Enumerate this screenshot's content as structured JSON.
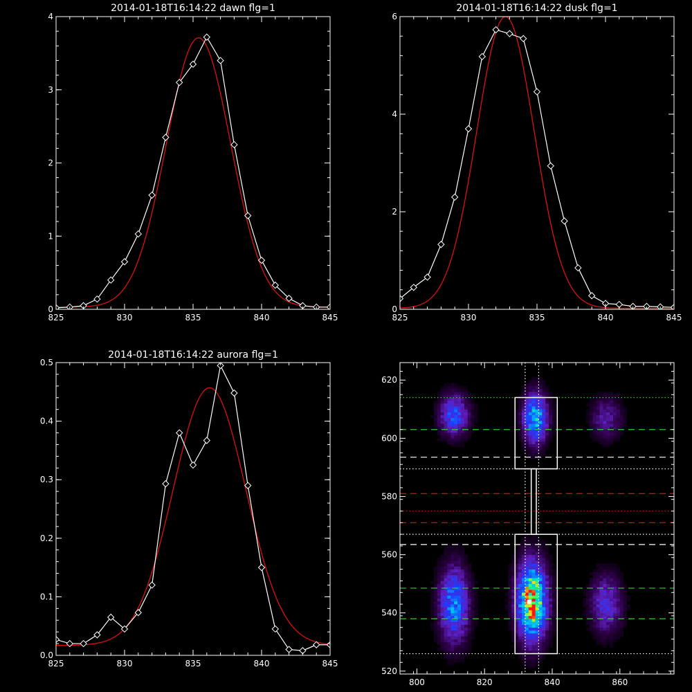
{
  "colors": {
    "background": "#000000",
    "axis": "#ffffff",
    "data": "#ffffff",
    "fit": "#dd1111",
    "green": "#33cc33",
    "dashed_white": "#ffffff",
    "red": "#dd1111"
  },
  "chart_data": [
    {
      "type": "line",
      "title": "2014-01-18T16:14:22 dawn flg=1",
      "xlim": [
        825,
        845
      ],
      "ylim": [
        0,
        4
      ],
      "xticks": [
        "825",
        "830",
        "835",
        "840",
        "845"
      ],
      "yticks": [
        "0",
        "1",
        "2",
        "3",
        "4"
      ],
      "series": [
        {
          "style": "data",
          "marker": "diamond",
          "x": [
            825,
            826,
            827,
            828,
            829,
            830,
            831,
            832,
            833,
            834,
            835,
            836,
            837,
            838,
            839,
            840,
            841,
            842,
            843,
            844,
            845
          ],
          "y": [
            0.02,
            0.03,
            0.05,
            0.14,
            0.4,
            0.65,
            1.03,
            1.56,
            2.35,
            3.1,
            3.35,
            3.72,
            3.4,
            2.25,
            1.28,
            0.67,
            0.33,
            0.15,
            0.05,
            0.03,
            0.03
          ]
        },
        {
          "style": "fit",
          "peak": 3.68,
          "center": 835.4,
          "sigma": 2.35,
          "base": 0.03
        }
      ]
    },
    {
      "type": "line",
      "title": "2014-01-18T16:14:22 dusk flg=1",
      "xlim": [
        825,
        845
      ],
      "ylim": [
        0,
        6
      ],
      "xticks": [
        "825",
        "830",
        "835",
        "840",
        "845"
      ],
      "yticks": [
        "0",
        "2",
        "4",
        "6"
      ],
      "series": [
        {
          "style": "data",
          "marker": "diamond",
          "x": [
            825,
            826,
            827,
            828,
            829,
            830,
            831,
            832,
            833,
            834,
            835,
            836,
            837,
            838,
            839,
            840,
            841,
            842,
            843,
            844,
            845
          ],
          "y": [
            0.22,
            0.45,
            0.66,
            1.33,
            2.3,
            3.7,
            5.18,
            5.73,
            5.65,
            5.55,
            4.46,
            2.94,
            1.81,
            0.85,
            0.28,
            0.12,
            0.1,
            0.06,
            0.06,
            0.05,
            0.04
          ]
        },
        {
          "style": "fit",
          "peak": 5.98,
          "center": 832.7,
          "sigma": 2.1,
          "base": 0.02
        }
      ]
    },
    {
      "type": "line",
      "title": "2014-01-18T16:14:22 aurora flg=1",
      "xlim": [
        825,
        845
      ],
      "ylim": [
        0,
        0.5
      ],
      "xticks": [
        "825",
        "830",
        "835",
        "840",
        "845"
      ],
      "yticks": [
        "0.0",
        "0.1",
        "0.2",
        "0.3",
        "0.4",
        "0.5"
      ],
      "series": [
        {
          "style": "data",
          "marker": "diamond",
          "x": [
            825,
            826,
            827,
            828,
            829,
            830,
            831,
            832,
            833,
            834,
            835,
            836,
            837,
            838,
            839,
            840,
            841,
            842,
            843,
            844,
            845
          ],
          "y": [
            0.027,
            0.02,
            0.02,
            0.035,
            0.065,
            0.045,
            0.073,
            0.12,
            0.293,
            0.38,
            0.325,
            0.367,
            0.495,
            0.448,
            0.29,
            0.15,
            0.045,
            0.01,
            0.008,
            0.018,
            0.018
          ]
        },
        {
          "style": "fit",
          "peak": 0.44,
          "center": 836.2,
          "sigma": 2.65,
          "base": 0.017
        }
      ]
    },
    {
      "type": "heatmap",
      "title": "",
      "xlim": [
        795,
        876
      ],
      "ylim": [
        519,
        626
      ],
      "xticks": [
        "800",
        "820",
        "840",
        "860"
      ],
      "yticks": [
        "520",
        "540",
        "560",
        "580",
        "600",
        "620"
      ],
      "blobs": [
        {
          "x": 811,
          "y": 543,
          "sx": 3.0,
          "sy": 9,
          "amp": 0.55
        },
        {
          "x": 811,
          "y": 608,
          "sx": 3.0,
          "sy": 5,
          "amp": 0.45
        },
        {
          "x": 834,
          "y": 544,
          "sx": 3.0,
          "sy": 9,
          "amp": 1.0
        },
        {
          "x": 835,
          "y": 607,
          "sx": 2.5,
          "sy": 6,
          "amp": 0.65
        },
        {
          "x": 856,
          "y": 543,
          "sx": 3.2,
          "sy": 7,
          "amp": 0.35
        },
        {
          "x": 856,
          "y": 607,
          "sx": 3.2,
          "sy": 5,
          "amp": 0.25
        }
      ],
      "hlines": [
        {
          "y": 614,
          "style": "dotted",
          "color": "green"
        },
        {
          "y": 603,
          "style": "dashed",
          "color": "green"
        },
        {
          "y": 593.5,
          "style": "dashed",
          "color": "white"
        },
        {
          "y": 589.5,
          "style": "dotted",
          "color": "white"
        },
        {
          "y": 581,
          "style": "dashed",
          "color": "red"
        },
        {
          "y": 575,
          "style": "dotted",
          "color": "red"
        },
        {
          "y": 571,
          "style": "dashed",
          "color": "red"
        },
        {
          "y": 567,
          "style": "dotted",
          "color": "white"
        },
        {
          "y": 563.5,
          "style": "dashed",
          "color": "white"
        },
        {
          "y": 548.5,
          "style": "dashed",
          "color": "green"
        },
        {
          "y": 538,
          "style": "dashed",
          "color": "green"
        },
        {
          "y": 526,
          "style": "dotted",
          "color": "white"
        }
      ],
      "vlines": [
        {
          "x": 832,
          "style": "dotted",
          "color": "white"
        },
        {
          "x": 836,
          "style": "dotted",
          "color": "white"
        }
      ],
      "boxes": [
        {
          "x0": 829,
          "x1": 841.5,
          "y0": 589.5,
          "y1": 614
        },
        {
          "x0": 829,
          "x1": 841.5,
          "y0": 526,
          "y1": 567
        },
        {
          "x0": 833.8,
          "x1": 835.3,
          "y0": 567,
          "y1": 589.5
        }
      ],
      "marker": {
        "x": 833.2,
        "y": 543.8
      }
    }
  ]
}
